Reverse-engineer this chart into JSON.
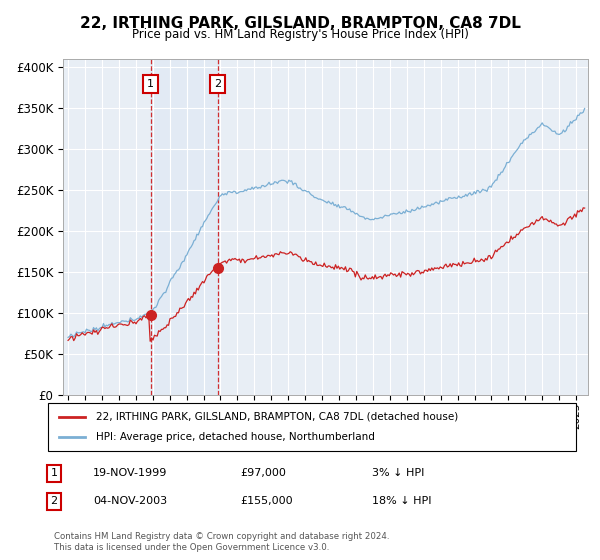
{
  "title": "22, IRTHING PARK, GILSLAND, BRAMPTON, CA8 7DL",
  "subtitle": "Price paid vs. HM Land Registry's House Price Index (HPI)",
  "ylim": [
    0,
    410000
  ],
  "yticks": [
    0,
    50000,
    100000,
    150000,
    200000,
    250000,
    300000,
    350000,
    400000
  ],
  "ytick_labels": [
    "£0",
    "£50K",
    "£100K",
    "£150K",
    "£200K",
    "£250K",
    "£300K",
    "£350K",
    "£400K"
  ],
  "background_color": "#ffffff",
  "plot_bg_color": "#e8eef5",
  "grid_color": "#ffffff",
  "hpi_color": "#7bafd4",
  "price_color": "#cc2222",
  "sale1_date": 1999.88,
  "sale1_price": 97000,
  "sale2_date": 2003.84,
  "sale2_price": 155000,
  "legend_house_label": "22, IRTHING PARK, GILSLAND, BRAMPTON, CA8 7DL (detached house)",
  "legend_hpi_label": "HPI: Average price, detached house, Northumberland",
  "annotation1_date": "19-NOV-1999",
  "annotation1_price": "£97,000",
  "annotation1_hpi": "3% ↓ HPI",
  "annotation2_date": "04-NOV-2003",
  "annotation2_price": "£155,000",
  "annotation2_hpi": "18% ↓ HPI",
  "footer": "Contains HM Land Registry data © Crown copyright and database right 2024.\nThis data is licensed under the Open Government Licence v3.0.",
  "xmin": 1994.7,
  "xmax": 2025.7
}
